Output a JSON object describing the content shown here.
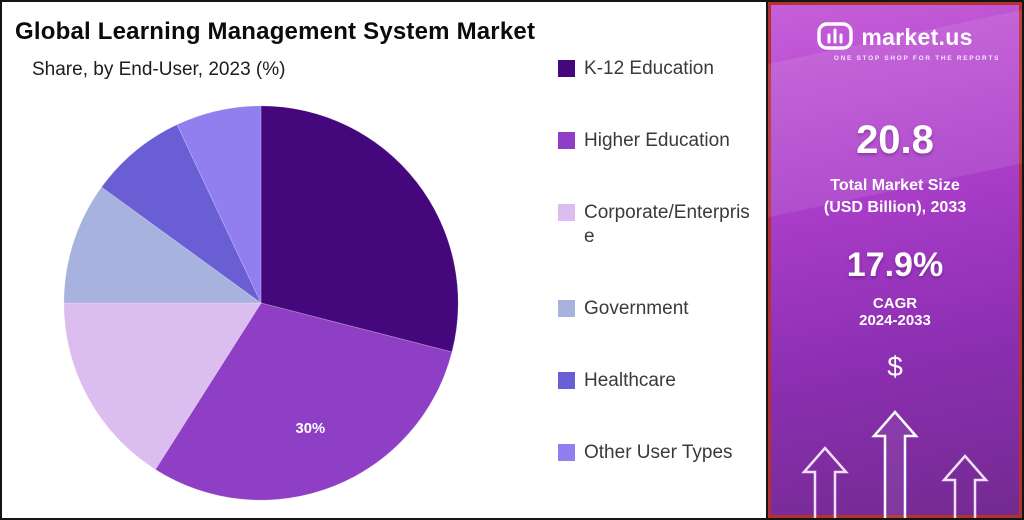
{
  "chart_data": {
    "type": "pie",
    "title": "Global Learning Management System Market",
    "subtitle": "Share, by End-User, 2023 (%)",
    "categories": [
      "K-12 Education",
      "Higher Education",
      "Corporate/Enterprise",
      "Government",
      "Healthcare",
      "Other User Types"
    ],
    "values": [
      29,
      30,
      16,
      10,
      8,
      7
    ],
    "colors": [
      "#45087c",
      "#8e3fc6",
      "#dcbdf0",
      "#a7b2de",
      "#6a5ed4",
      "#917ff0"
    ],
    "data_labels": [
      {
        "index": 1,
        "text": "30%"
      }
    ],
    "start_angle_deg": 0,
    "legend_position": "right"
  },
  "sidebar": {
    "brand": "market.us",
    "tagline": "ONE STOP SHOP FOR THE REPORTS",
    "market_size_value": "20.8",
    "market_size_label": "Total Market Size (USD Billion), 2033",
    "cagr_value": "17.9%",
    "cagr_label": "CAGR",
    "cagr_period": "2024-2033",
    "dollar_symbol": "$"
  }
}
